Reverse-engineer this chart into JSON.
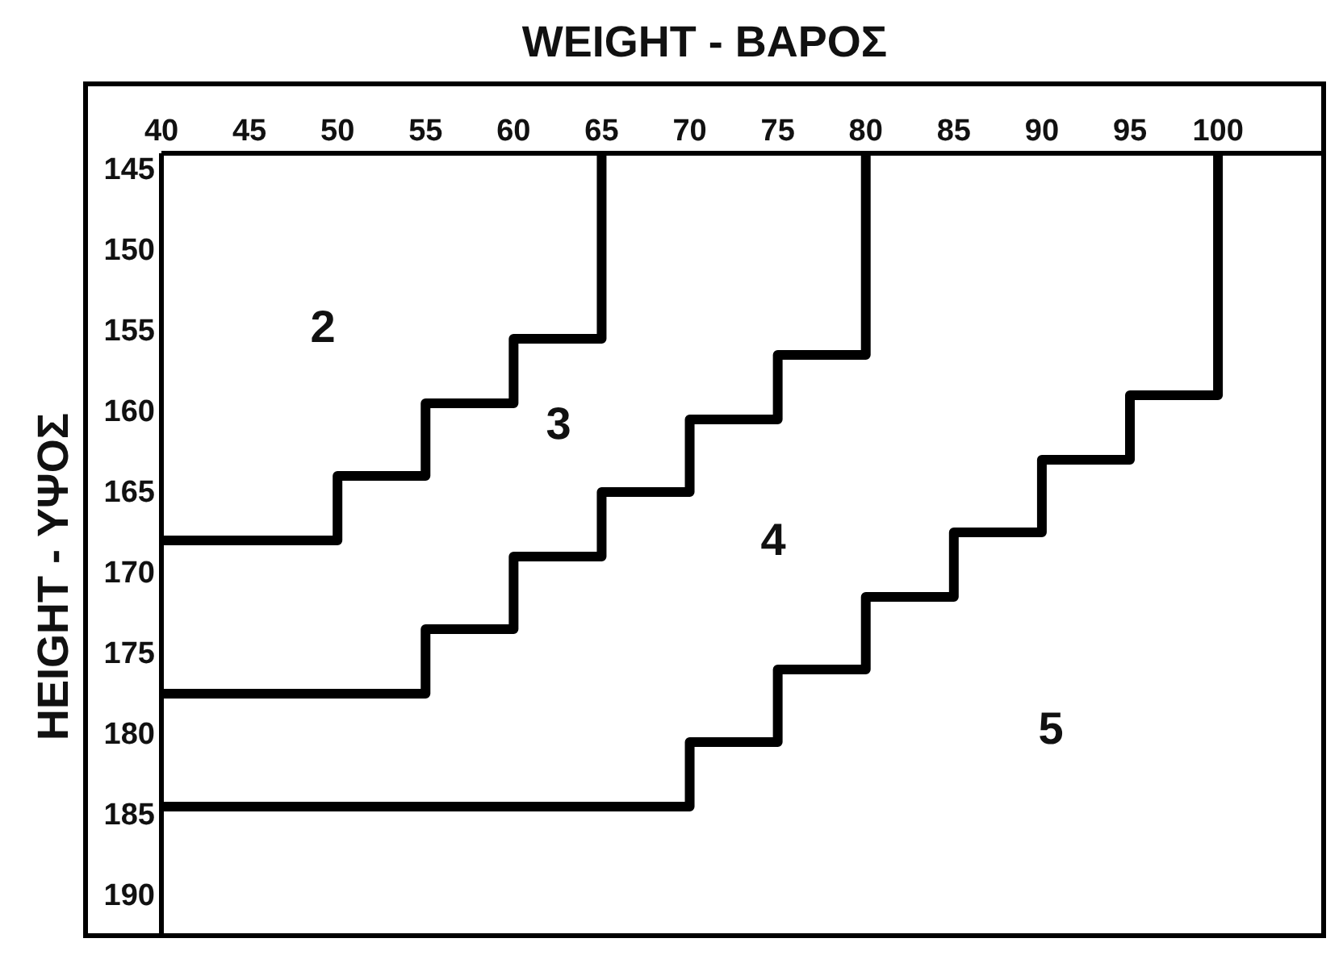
{
  "chart_data": {
    "type": "step",
    "xlabel": "WEIGHT - ΒΑΡΟΣ",
    "ylabel": "HEIGHT - ΥΨΟΣ",
    "xlim": [
      40,
      106
    ],
    "xticks": [
      40,
      45,
      50,
      55,
      60,
      65,
      70,
      75,
      80,
      85,
      90,
      95,
      100
    ],
    "ylim": [
      192.5,
      144
    ],
    "yticks": [
      145,
      150,
      155,
      160,
      165,
      170,
      175,
      180,
      185,
      190
    ],
    "grid": false,
    "marker": "none",
    "line_style": "solid",
    "series": [
      {
        "color": "#000000",
        "x": [
          40,
          50,
          55,
          60,
          65
        ],
        "values": [
          168,
          164,
          159.5,
          155.5,
          144
        ]
      },
      {
        "color": "#000000",
        "x": [
          40,
          55,
          60,
          65,
          70,
          75,
          80
        ],
        "values": [
          177.5,
          173.5,
          169,
          165,
          160.5,
          156.5,
          144
        ]
      },
      {
        "color": "#000000",
        "x": [
          40,
          70,
          75,
          80,
          85,
          90,
          95,
          100
        ],
        "values": [
          184.5,
          180.5,
          176,
          171.5,
          167.5,
          163,
          159,
          144
        ]
      }
    ],
    "annotations": [
      "2",
      "3",
      "4",
      "5"
    ]
  }
}
